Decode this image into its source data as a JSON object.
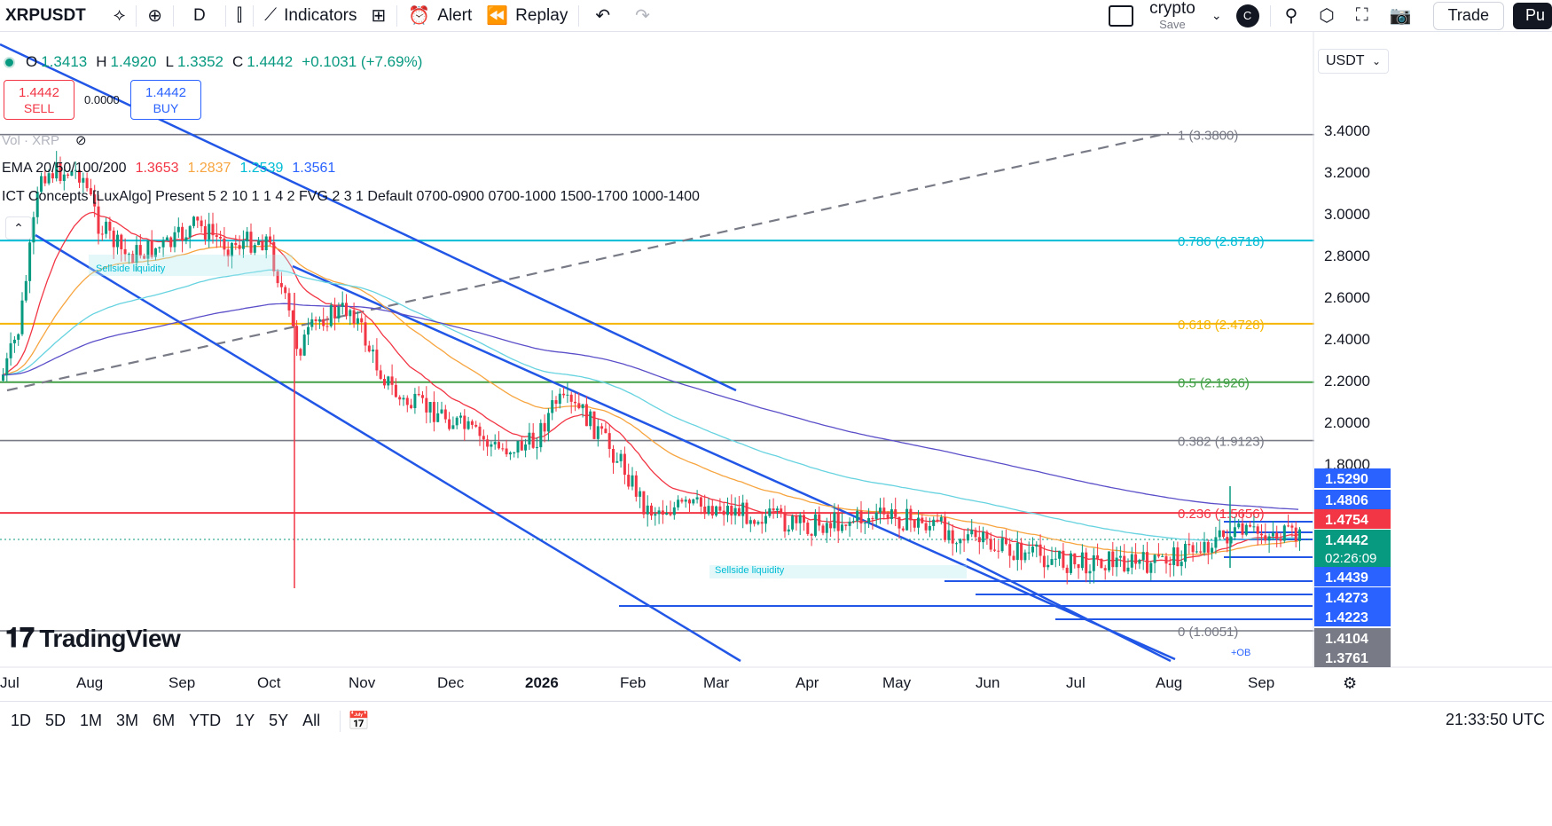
{
  "toolbar": {
    "symbol": "XRPUSDT",
    "interval": "D",
    "indicators_label": "Indicators",
    "alert_label": "Alert",
    "replay_label": "Replay",
    "layout_name": "crypto",
    "layout_status": "Save",
    "avatar_letter": "C",
    "trade_label": "Trade",
    "publish_label": "Pu"
  },
  "legend": {
    "o_label": "O",
    "o": "1.3413",
    "h_label": "H",
    "h": "1.4920",
    "l_label": "L",
    "l": "1.3352",
    "c_label": "C",
    "c": "1.4442",
    "change": "+0.1031 (+7.69%)",
    "sell_price": "1.4442",
    "sell_label": "SELL",
    "buy_price": "1.4442",
    "buy_label": "BUY",
    "spread": "0.0000",
    "volume": "Vol · XRP",
    "ema_name": "EMA 20/50/100/200",
    "ema_values": [
      "1.3653",
      "1.2837",
      "1.2539",
      "1.3561"
    ],
    "ict": "ICT Concepts [LuxAlgo] Present 5 2 10 1 1 4 2 FVG 2 3 1 Default 0700-0900 0700-1000 1500-1700 1000-1400"
  },
  "currency": "USDT",
  "colors": {
    "up": "#089981",
    "down": "#f23645",
    "ema20": "#f23645",
    "ema50": "#f7a540",
    "ema100": "#67d3e0",
    "ema200": "#5b4fc9",
    "channel": "#2156e6",
    "fib_red": "#f23645",
    "fib_gray": "#787b86",
    "fib_cyan": "#00bcd4",
    "fib_orange": "#f5b500",
    "fib_green": "#43a047"
  },
  "chart_data": {
    "type": "candlestick",
    "symbol": "XRPUSDT",
    "interval": "1D",
    "ylim": [
      1.28,
      3.5
    ],
    "y_ticks": [
      "3.4000",
      "3.2000",
      "3.0000",
      "2.8000",
      "2.6000",
      "2.4000",
      "2.2000",
      "2.0000",
      "1.8000"
    ],
    "x_labels": [
      "Jul",
      "Aug",
      "Sep",
      "Oct",
      "Nov",
      "Dec",
      "2026",
      "Feb",
      "Mar",
      "Apr",
      "May",
      "Jun",
      "Jul",
      "Aug",
      "Sep"
    ],
    "close_path": [
      [
        "Jul",
        2.2
      ],
      [
        "Jul",
        2.45
      ],
      [
        "Jul",
        3.2
      ],
      [
        "Aug",
        3.2
      ],
      [
        "Aug",
        2.95
      ],
      [
        "Aug",
        2.8
      ],
      [
        "Sep",
        2.85
      ],
      [
        "Sep",
        2.95
      ],
      [
        "Sep",
        2.85
      ],
      [
        "Oct",
        2.88
      ],
      [
        "Oct",
        2.35
      ],
      [
        "Oct",
        2.5
      ],
      [
        "Nov",
        2.55
      ],
      [
        "Nov",
        2.3
      ],
      [
        "Nov",
        2.1
      ],
      [
        "Dec",
        2.05
      ],
      [
        "Dec",
        1.87
      ],
      [
        "2026",
        1.9
      ],
      [
        "2026",
        2.1
      ],
      [
        "2026",
        2.05
      ],
      [
        "Feb",
        1.8
      ],
      [
        "Feb",
        1.58
      ],
      [
        "Mar",
        1.6
      ],
      [
        "Mar",
        1.55
      ],
      [
        "Apr",
        1.5
      ],
      [
        "Apr",
        1.53
      ],
      [
        "May",
        1.55
      ],
      [
        "May",
        1.5
      ],
      [
        "Jun",
        1.4
      ],
      [
        "Jun",
        1.35
      ],
      [
        "Jul",
        1.32
      ],
      [
        "Jul",
        1.34
      ],
      [
        "Aug",
        1.32
      ],
      [
        "Aug",
        1.46
      ],
      [
        "Sep",
        1.47
      ],
      [
        "Sep",
        1.4442
      ]
    ],
    "fib_levels": [
      {
        "ratio": "1",
        "label": "1 (3.3800)",
        "price": 3.38,
        "color": "#787b86"
      },
      {
        "ratio": "0.786",
        "label": "0.786 (2.8718)",
        "price": 2.8718,
        "color": "#00bcd4"
      },
      {
        "ratio": "0.618",
        "label": "0.618 (2.4728)",
        "price": 2.4728,
        "color": "#f5b500"
      },
      {
        "ratio": "0.5",
        "label": "0.5 (2.1926)",
        "price": 2.1926,
        "color": "#43a047"
      },
      {
        "ratio": "0.382",
        "label": "0.382 (1.9123)",
        "price": 1.9123,
        "color": "#787b86"
      },
      {
        "ratio": "0.236",
        "label": "0.236 (1.5656)",
        "price": 1.5656,
        "color": "#f23645"
      },
      {
        "ratio": "0",
        "label": "0 (1.0051)",
        "price": 1.0051,
        "color": "#787b86"
      }
    ],
    "price_tags": [
      {
        "label": "1.5290",
        "color": "#2962ff",
        "price": 1.529
      },
      {
        "label": "1.4806",
        "color": "#2962ff",
        "price": 1.4806
      },
      {
        "label": "1.4754",
        "color": "#f23645",
        "price": 1.4754
      },
      {
        "label": "1.4442",
        "color": "#089981",
        "price": 1.4442,
        "sub": "02:26:09"
      },
      {
        "label": "1.4439",
        "color": "#2962ff",
        "price": 1.4439
      },
      {
        "label": "1.4273",
        "color": "#2962ff",
        "price": 1.4273
      },
      {
        "label": "1.4223",
        "color": "#2962ff",
        "price": 1.4223
      },
      {
        "label": "1.4104",
        "color": "#787b86",
        "price": 1.4104
      },
      {
        "label": "1.3761",
        "color": "#787b86",
        "price": 1.3761
      }
    ],
    "annotations": [
      "Sellside liquidity",
      "Sellside liquidity",
      "+OB"
    ]
  },
  "bottom": {
    "ranges": [
      "1D",
      "5D",
      "1M",
      "3M",
      "6M",
      "YTD",
      "1Y",
      "5Y",
      "All"
    ],
    "clock": "21:33:50 UTC"
  }
}
